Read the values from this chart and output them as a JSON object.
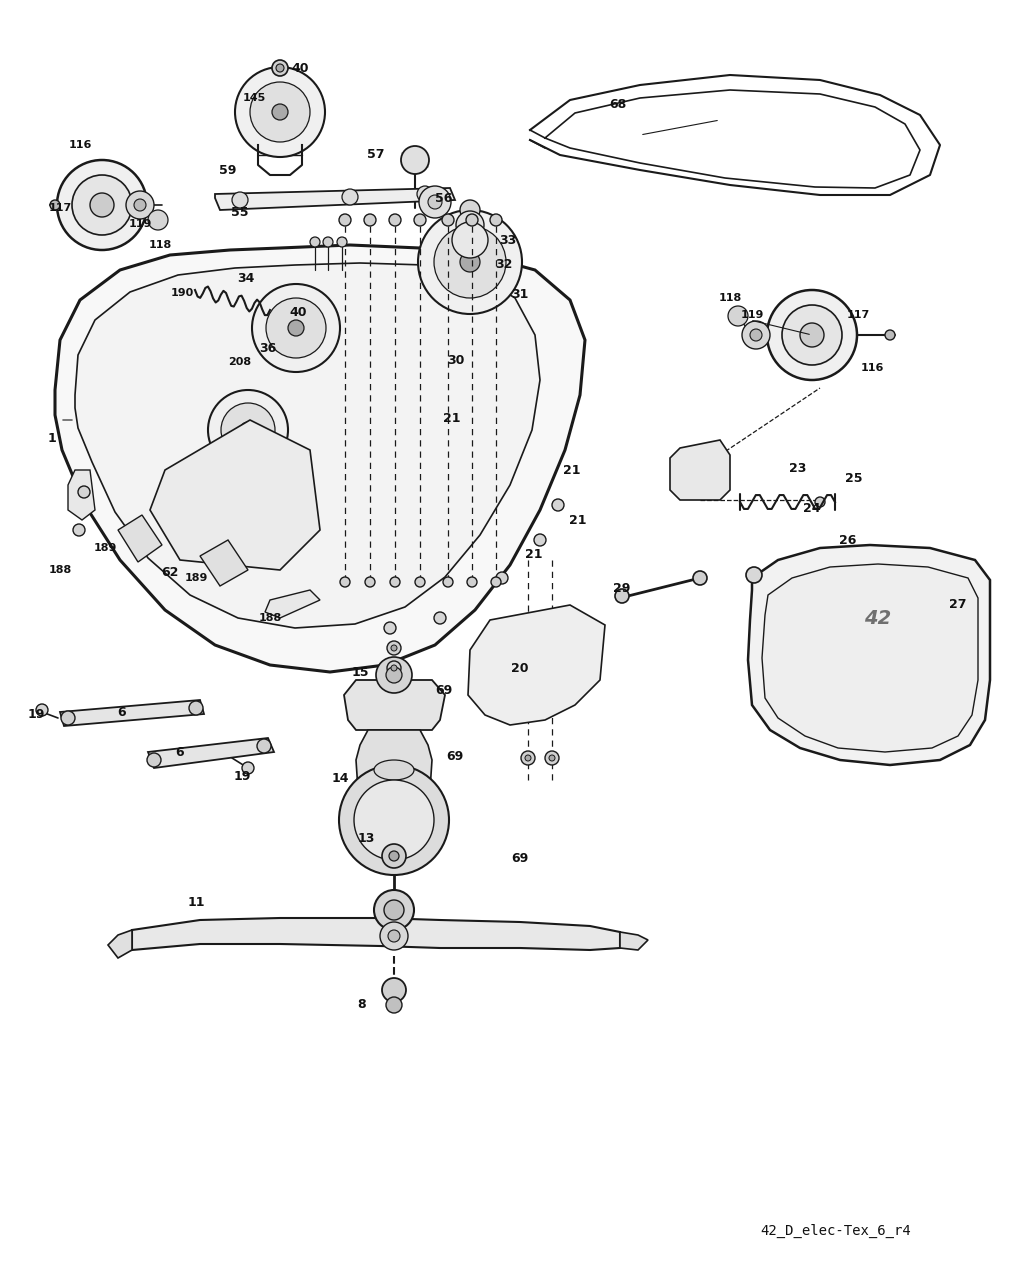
{
  "background_color": "#ffffff",
  "line_color": "#1a1a1a",
  "text_color": "#111111",
  "caption": "42_D_elec-Tex_6_r4",
  "fig_w": 10.24,
  "fig_h": 12.68,
  "dpi": 100
}
